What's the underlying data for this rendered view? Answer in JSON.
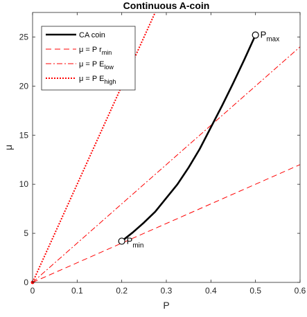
{
  "chart_data": {
    "type": "line",
    "title": "Continuous A-coin",
    "xlabel": "P",
    "ylabel": "μ",
    "xlim": [
      0,
      0.6
    ],
    "ylim": [
      0,
      27.5
    ],
    "xticks": [
      0,
      0.1,
      0.2,
      0.3,
      0.4,
      0.5,
      0.6
    ],
    "xtick_labels": [
      "0",
      "0.1",
      "0.2",
      "0.3",
      "0.4",
      "0.5",
      "0.6"
    ],
    "yticks": [
      0,
      5,
      10,
      15,
      20,
      25
    ],
    "ytick_labels": [
      "0",
      "5",
      "10",
      "15",
      "20",
      "25"
    ],
    "grid": false,
    "legend_position": "top-left",
    "series": [
      {
        "name": "CA coin",
        "color": "#000000",
        "style": "solid",
        "x": [
          0.2,
          0.225,
          0.25,
          0.275,
          0.3,
          0.325,
          0.35,
          0.375,
          0.4,
          0.425,
          0.45,
          0.475,
          0.5
        ],
        "y": [
          4.2,
          5.1,
          6.1,
          7.2,
          8.6,
          10.0,
          11.7,
          13.6,
          15.8,
          18.0,
          20.3,
          22.7,
          25.2
        ]
      },
      {
        "name_prefix": "μ = P r",
        "name_sub": "min",
        "color": "#ff0000",
        "style": "dashed",
        "x": [
          0,
          0.6
        ],
        "y": [
          0,
          12
        ]
      },
      {
        "name_prefix": "μ = P E",
        "name_sub": "low",
        "color": "#ff0000",
        "style": "dashdot",
        "x": [
          0,
          0.6
        ],
        "y": [
          0,
          24
        ]
      },
      {
        "name_prefix": "μ = P E",
        "name_sub": "high",
        "color": "#ff0000",
        "style": "dotted",
        "x": [
          0,
          0.3
        ],
        "y": [
          0,
          30
        ]
      }
    ],
    "annotations": [
      {
        "label": "P",
        "sub": "min",
        "x": 0.2,
        "y": 4.2
      },
      {
        "label": "P",
        "sub": "max",
        "x": 0.5,
        "y": 25.2
      }
    ]
  }
}
